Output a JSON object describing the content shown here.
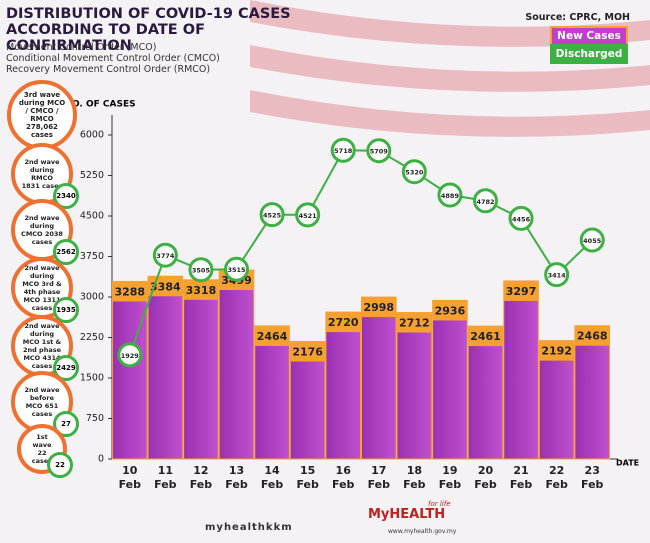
{
  "chart_data": {
    "type": "bar-line",
    "title": "DISTRIBUTION OF COVID-19 CASES ACCORDING TO DATE OF CONFIRMATION",
    "subtitles": [
      "Movement Control Order (MCO)",
      "Conditional Movement Control Order (CMCO)",
      "Recovery Movement Control Order (RMCO)"
    ],
    "source": "Source: CPRC, MOH",
    "y_label": "NO. OF CASES",
    "x_label": "DATE",
    "categories": [
      "10 Feb",
      "11 Feb",
      "12 Feb",
      "13 Feb",
      "14 Feb",
      "15 Feb",
      "16 Feb",
      "17 Feb",
      "18 Feb",
      "19 Feb",
      "20 Feb",
      "21 Feb",
      "22 Feb",
      "23 Feb"
    ],
    "series": [
      {
        "name": "New Cases",
        "type": "bar",
        "color": "#b040c0",
        "values": [
          3288,
          3384,
          3318,
          3499,
          2464,
          2176,
          2720,
          2998,
          2712,
          2936,
          2461,
          3297,
          2192,
          2468
        ]
      },
      {
        "name": "Discharged",
        "type": "line",
        "color": "#3cb043",
        "values": [
          1929,
          3774,
          3505,
          3515,
          4525,
          4521,
          5718,
          5709,
          5320,
          4889,
          4782,
          4456,
          3414,
          4055
        ]
      }
    ],
    "ylim": [
      0,
      6000
    ],
    "yticks": [
      0,
      750,
      1500,
      2250,
      3000,
      3750,
      4500,
      5250,
      6000
    ]
  },
  "waves": [
    {
      "label": "3rd wave during MCO / CMCO / RMCO 278,062 cases"
    },
    {
      "label": "2nd wave during RMCO 1831 cases",
      "discharged": 2340
    },
    {
      "label": "2nd wave during CMCO 2038 cases",
      "discharged": 2562
    },
    {
      "label": "2nd wave during MCO 3rd & 4th phase MCO 1311 cases",
      "discharged": 1935
    },
    {
      "label": "2nd wave during MCO 1st & 2nd phase MCO 4314 cases",
      "discharged": 2429
    },
    {
      "label": "2nd wave before MCO 651 cases",
      "discharged": 27
    },
    {
      "label": "1st wave 22 cases",
      "discharged": 22
    }
  ],
  "footer": {
    "handle": "myhealthkkm",
    "brand": "MyHEALTH",
    "tagline": "for life",
    "website": "www.myhealth.gov.my"
  }
}
